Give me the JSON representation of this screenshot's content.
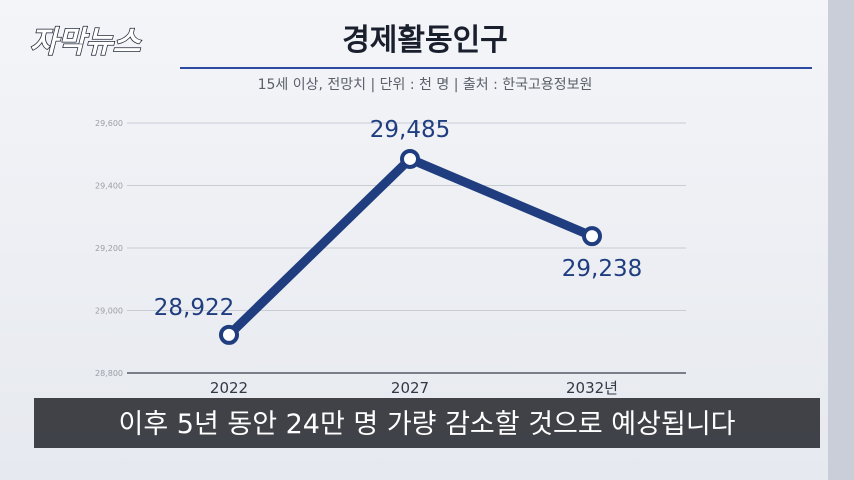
{
  "logo": "자막뉴스",
  "caption": "이후 5년 동안 24만 명 가량 감소할 것으로 예상됩니다",
  "chart_data": {
    "type": "line",
    "title": "경제활동인구",
    "subtitle": "15세 이상, 전망치 | 단위 : 천 명 | 출처 : 한국고용정보원",
    "categories": [
      "2022",
      "2027",
      "2032년"
    ],
    "values": [
      28922,
      29485,
      29238
    ],
    "value_labels": [
      "28,922",
      "29,485",
      "29,238"
    ],
    "color": "#1f3d7f",
    "ylim": [
      28800,
      29600
    ],
    "yticks": [
      {
        "value": 28800,
        "label": "28,800"
      },
      {
        "value": 29000,
        "label": "29,000"
      },
      {
        "value": 29200,
        "label": "29,200"
      },
      {
        "value": 29400,
        "label": "29,400"
      },
      {
        "value": 29600,
        "label": "29,600"
      }
    ],
    "grid": true
  }
}
